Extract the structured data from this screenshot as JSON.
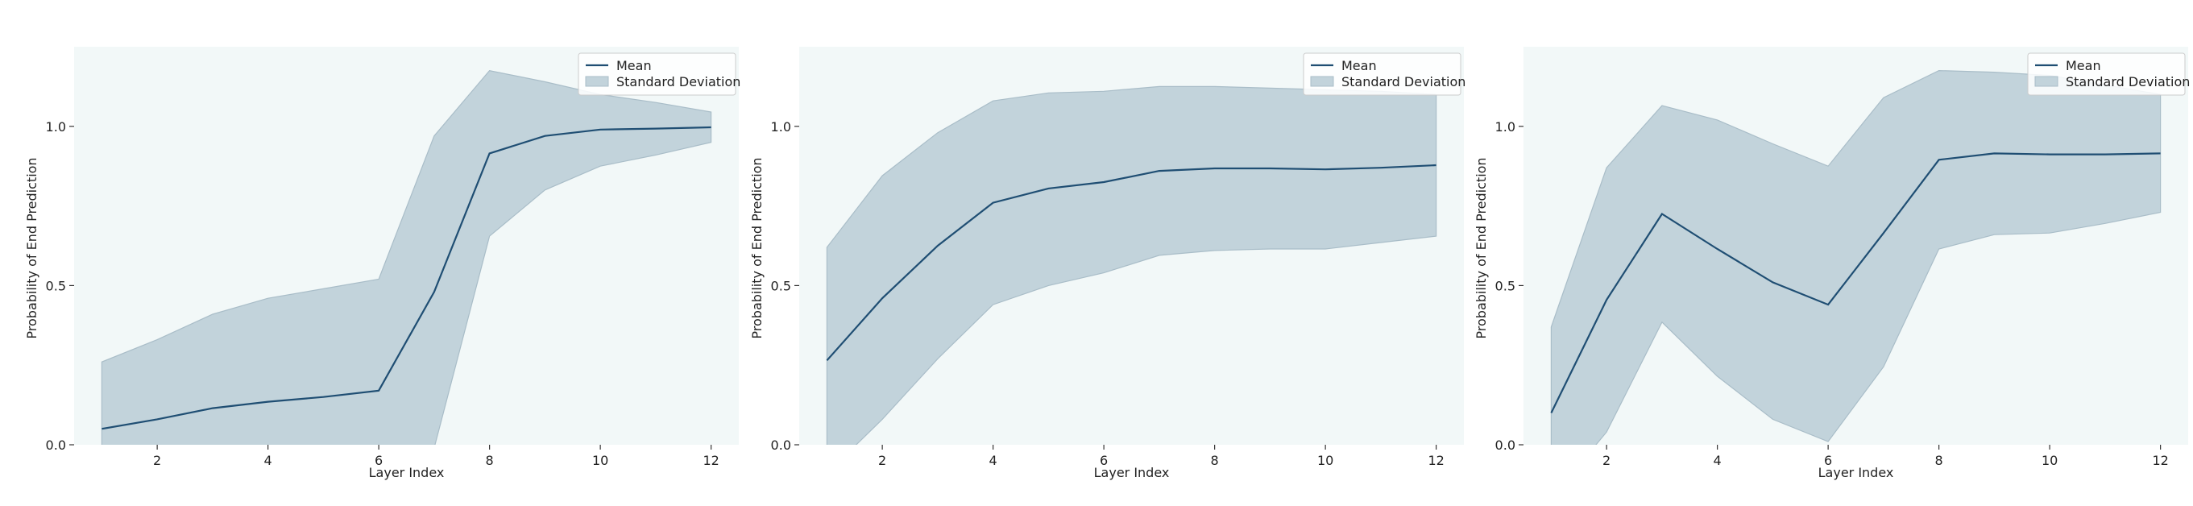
{
  "colors": {
    "plot_background": "#f2f8f8",
    "mean_line": "#1f4e73",
    "band_fill": "#c2d3db",
    "band_edge": "#a9bdc8",
    "text": "#222222"
  },
  "legend_labels": {
    "mean": "Mean",
    "std": "Standard Deviation"
  },
  "chart_data": [
    {
      "type": "line",
      "xlabel": "Layer Index",
      "ylabel": "Probability of End Prediction",
      "x": [
        1,
        2,
        3,
        4,
        5,
        6,
        7,
        8,
        9,
        10,
        11,
        12
      ],
      "xlim": [
        0.5,
        12.5
      ],
      "ylim": [
        0.0,
        1.25
      ],
      "xticks": [
        2,
        4,
        6,
        8,
        10,
        12
      ],
      "yticks": [
        0.0,
        0.5,
        1.0
      ],
      "ytick_labels": [
        "0.0",
        "0.5",
        "1.0"
      ],
      "legend_position": "top-right",
      "grid": false,
      "series": [
        {
          "name": "Mean",
          "values": [
            0.05,
            0.08,
            0.115,
            0.135,
            0.15,
            0.17,
            0.48,
            0.915,
            0.97,
            0.99,
            0.993,
            0.997
          ]
        },
        {
          "name": "Standard Deviation",
          "lower": [
            -0.16,
            -0.17,
            -0.18,
            -0.19,
            -0.19,
            -0.18,
            -0.01,
            0.655,
            0.8,
            0.875,
            0.91,
            0.95
          ],
          "upper": [
            0.26,
            0.33,
            0.41,
            0.46,
            0.49,
            0.52,
            0.97,
            1.175,
            1.14,
            1.1,
            1.075,
            1.045
          ]
        }
      ]
    },
    {
      "type": "line",
      "xlabel": "Layer Index",
      "ylabel": "Probability of End Prediction",
      "x": [
        1,
        2,
        3,
        4,
        5,
        6,
        7,
        8,
        9,
        10,
        11,
        12
      ],
      "xlim": [
        0.5,
        12.5
      ],
      "ylim": [
        0.0,
        1.25
      ],
      "xticks": [
        2,
        4,
        6,
        8,
        10,
        12
      ],
      "yticks": [
        0.0,
        0.5,
        1.0
      ],
      "ytick_labels": [
        "0.0",
        "0.5",
        "1.0"
      ],
      "legend_position": "top-right",
      "grid": false,
      "series": [
        {
          "name": "Mean",
          "values": [
            0.265,
            0.46,
            0.625,
            0.76,
            0.805,
            0.825,
            0.86,
            0.868,
            0.868,
            0.865,
            0.87,
            0.878
          ]
        },
        {
          "name": "Standard Deviation",
          "lower": [
            -0.09,
            0.08,
            0.27,
            0.44,
            0.5,
            0.54,
            0.595,
            0.61,
            0.615,
            0.615,
            0.635,
            0.655
          ],
          "upper": [
            0.62,
            0.845,
            0.98,
            1.08,
            1.105,
            1.11,
            1.125,
            1.125,
            1.12,
            1.115,
            1.11,
            1.1
          ]
        }
      ]
    },
    {
      "type": "line",
      "xlabel": "Layer Index",
      "ylabel": "Probability of End Prediction",
      "x": [
        1,
        2,
        3,
        4,
        5,
        6,
        7,
        8,
        9,
        10,
        11,
        12
      ],
      "xlim": [
        0.5,
        12.5
      ],
      "ylim": [
        0.0,
        1.25
      ],
      "xticks": [
        2,
        4,
        6,
        8,
        10,
        12
      ],
      "yticks": [
        0.0,
        0.5,
        1.0
      ],
      "ytick_labels": [
        "0.0",
        "0.5",
        "1.0"
      ],
      "legend_position": "top-right",
      "grid": false,
      "series": [
        {
          "name": "Mean",
          "values": [
            0.1,
            0.455,
            0.725,
            0.615,
            0.51,
            0.44,
            0.665,
            0.895,
            0.915,
            0.912,
            0.912,
            0.915
          ]
        },
        {
          "name": "Standard Deviation",
          "lower": [
            -0.17,
            0.04,
            0.385,
            0.215,
            0.08,
            0.01,
            0.245,
            0.615,
            0.66,
            0.665,
            0.695,
            0.73
          ],
          "upper": [
            0.37,
            0.87,
            1.065,
            1.02,
            0.945,
            0.875,
            1.09,
            1.175,
            1.17,
            1.16,
            1.13,
            1.1
          ]
        }
      ]
    }
  ]
}
